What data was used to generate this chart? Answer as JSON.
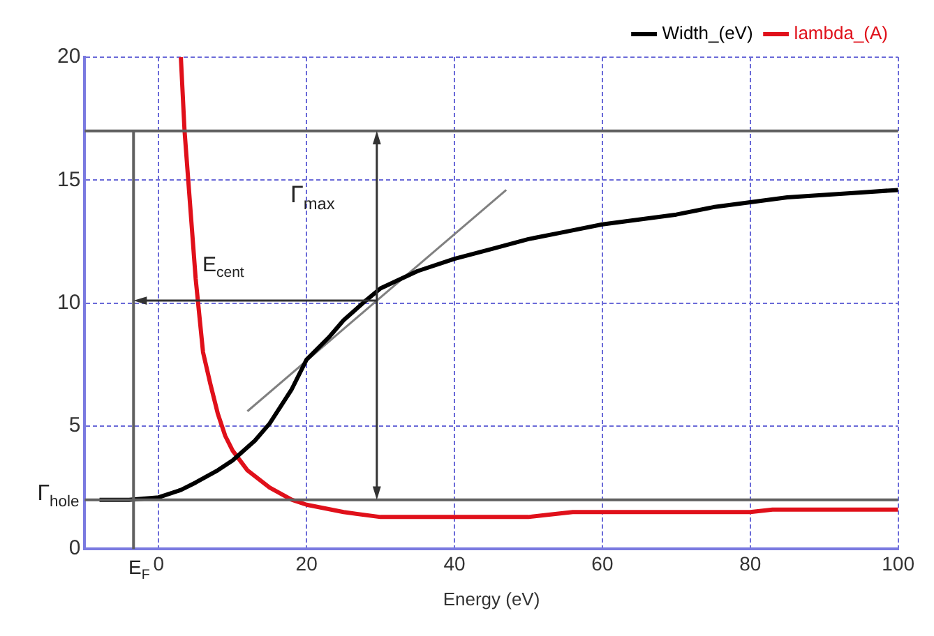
{
  "chart_data": {
    "type": "line",
    "xlabel": "Energy (eV)",
    "xlim": [
      -10,
      100
    ],
    "xticks": [
      0,
      20,
      40,
      60,
      80,
      100
    ],
    "ylim": [
      0,
      20
    ],
    "yticks": [
      0,
      5,
      10,
      15,
      20
    ],
    "grid": true,
    "legend": "top right",
    "marker": "none",
    "series": [
      {
        "name": "Width_(eV)",
        "color": "#000000",
        "x": [
          -8,
          -4,
          0,
          3,
          5,
          8,
          10,
          13,
          15,
          18,
          20,
          23,
          25,
          28,
          30,
          35,
          40,
          45,
          50,
          55,
          60,
          65,
          70,
          75,
          80,
          85,
          90,
          95,
          100
        ],
        "values": [
          2,
          2,
          2.1,
          2.4,
          2.7,
          3.2,
          3.6,
          4.4,
          5.1,
          6.5,
          7.7,
          8.6,
          9.3,
          10.1,
          10.6,
          11.3,
          11.8,
          12.2,
          12.6,
          12.9,
          13.2,
          13.4,
          13.6,
          13.9,
          14.1,
          14.3,
          14.4,
          14.5,
          14.6
        ]
      },
      {
        "name": "lambda_(A)",
        "color": "#e0101a",
        "x": [
          3,
          3.5,
          4,
          4.5,
          5,
          6,
          7,
          8,
          9,
          10,
          12,
          15,
          18,
          20,
          25,
          30,
          40,
          50,
          53,
          56,
          70,
          80,
          83,
          86,
          100
        ],
        "values": [
          20,
          17,
          15,
          13,
          11,
          8,
          6.7,
          5.5,
          4.6,
          4,
          3.2,
          2.5,
          2,
          1.8,
          1.5,
          1.3,
          1.3,
          1.3,
          1.4,
          1.5,
          1.5,
          1.5,
          1.6,
          1.6,
          1.6
        ]
      },
      {
        "type": "line",
        "color": "#808080",
        "x": [
          12,
          47
        ],
        "values": [
          5.6,
          14.6
        ]
      }
    ],
    "ref_lines": [
      {
        "axis": "y",
        "value": 17,
        "color": "#606060"
      },
      {
        "axis": "y",
        "value": 2,
        "label": "Γ$_{hole}$",
        "color": "#606060"
      },
      {
        "axis": "x",
        "value": -3.4,
        "label": "E$_{F}$",
        "color": "#606060"
      }
    ],
    "annotations": [
      "Γ$_{max}$",
      "E$_{cent}$"
    ]
  }
}
